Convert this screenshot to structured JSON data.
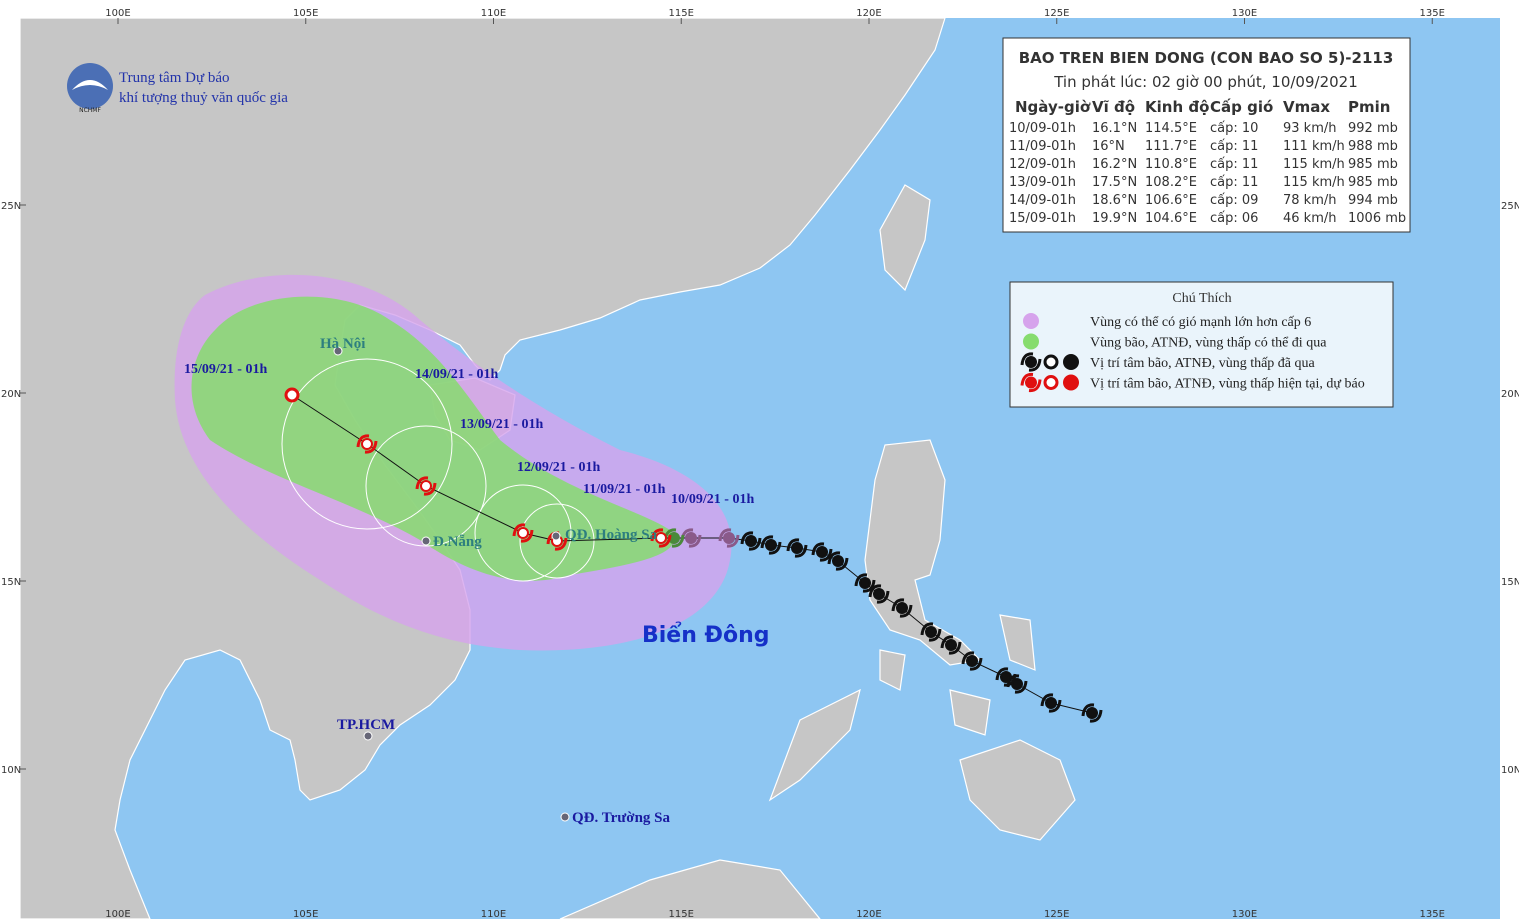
{
  "agency": {
    "line1": "Trung tâm Dự báo",
    "line2": "khí tượng thuỷ văn quốc gia",
    "logo_text": "NCHMF"
  },
  "bulletin": {
    "title": "BAO TREN BIEN DONG (CON BAO SO 5)-2113",
    "issued": "Tin phát lúc: 02 giờ 00 phút, 10/09/2021",
    "columns": [
      "Ngày-giờ",
      "Vĩ độ",
      "Kinh độ",
      "Cấp gió",
      "Vmax",
      "Pmin"
    ],
    "rows": [
      [
        "10/09-01h",
        "16.1°N",
        "114.5°E",
        "cấp: 10",
        "93 km/h",
        "992 mb"
      ],
      [
        "11/09-01h",
        "16°N",
        "111.7°E",
        "cấp: 11",
        "111 km/h",
        "988 mb"
      ],
      [
        "12/09-01h",
        "16.2°N",
        "110.8°E",
        "cấp: 11",
        "115 km/h",
        "985 mb"
      ],
      [
        "13/09-01h",
        "17.5°N",
        "108.2°E",
        "cấp: 11",
        "115 km/h",
        "985 mb"
      ],
      [
        "14/09-01h",
        "18.6°N",
        "106.6°E",
        "cấp: 09",
        "78 km/h",
        "994 mb"
      ],
      [
        "15/09-01h",
        "19.9°N",
        "104.6°E",
        "cấp: 06",
        "46 km/h",
        "1006 mb"
      ]
    ]
  },
  "legend": {
    "title": "Chú Thích",
    "items": [
      "Vùng có thể có gió mạnh lớn hơn cấp 6",
      "Vùng bão, ATNĐ, vùng thấp có thể đi qua",
      "Vị trí tâm bão, ATNĐ, vùng thấp đã qua",
      "Vị trí tâm bão, ATNĐ, vùng thấp hiện tại, dự báo"
    ]
  },
  "track_labels": [
    "10/09/21 - 01h",
    "11/09/21 - 01h",
    "12/09/21 - 01h",
    "13/09/21 - 01h",
    "14/09/21 - 01h",
    "15/09/21 - 01h"
  ],
  "places": [
    "Hà Nội",
    "Đ.Nẵng",
    "QĐ. Hoàng Sa",
    "TP.HCM",
    "QĐ. Trường Sa"
  ],
  "sea_label": "Biển Đông",
  "axes": {
    "lon_ticks": [
      {
        "value": 100,
        "label": "100E"
      },
      {
        "value": 105,
        "label": "105E"
      },
      {
        "value": 110,
        "label": "110E"
      },
      {
        "value": 115,
        "label": "115E"
      },
      {
        "value": 120,
        "label": "120E"
      },
      {
        "value": 125,
        "label": "125E"
      },
      {
        "value": 130,
        "label": "130E"
      },
      {
        "value": 135,
        "label": "135E"
      }
    ],
    "lat_ticks": [
      {
        "value": 10,
        "label": "10N"
      },
      {
        "value": 15,
        "label": "15N"
      },
      {
        "value": 20,
        "label": "20N"
      },
      {
        "value": 25,
        "label": "25N"
      }
    ]
  }
}
